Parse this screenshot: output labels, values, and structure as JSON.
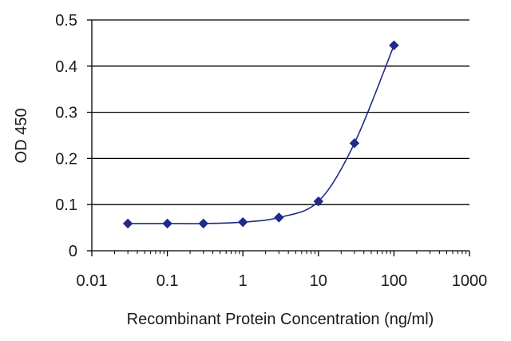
{
  "chart_data": {
    "type": "line",
    "title": "",
    "xlabel": "Recombinant Protein Concentration (ng/ml)",
    "ylabel": "OD 450",
    "x_scale": "log",
    "xlim": [
      0.01,
      1000
    ],
    "ylim": [
      0,
      0.5
    ],
    "x_ticks": [
      "0.01",
      "0.1",
      "1",
      "10",
      "100",
      "1000"
    ],
    "y_ticks": [
      "0",
      "0.1",
      "0.2",
      "0.3",
      "0.4",
      "0.5"
    ],
    "grid": "horizontal",
    "legend": "none",
    "colors": {
      "series": "#1f2a8a",
      "grid": "#000000",
      "axis": "#000000"
    },
    "series": [
      {
        "x": [
          0.03,
          0.1,
          0.3,
          1,
          3,
          10,
          30,
          100
        ],
        "y": [
          0.059,
          0.059,
          0.059,
          0.062,
          0.072,
          0.107,
          0.233,
          0.445
        ]
      }
    ]
  }
}
